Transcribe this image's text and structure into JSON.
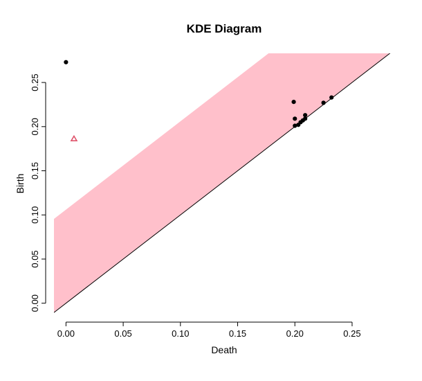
{
  "chart_data": {
    "type": "scatter",
    "title": "KDE Diagram",
    "xlabel": "Death",
    "ylabel": "Birth",
    "xlim": [
      -0.0105,
      0.2875
    ],
    "ylim": [
      -0.012,
      0.283
    ],
    "xticks": [
      0.0,
      0.05,
      0.1,
      0.15,
      0.2,
      0.25
    ],
    "xtick_labels": [
      "0.00",
      "0.05",
      "0.10",
      "0.15",
      "0.20",
      "0.25"
    ],
    "yticks": [
      0.0,
      0.05,
      0.1,
      0.15,
      0.2,
      0.25
    ],
    "ytick_labels": [
      "0.00",
      "0.05",
      "0.10",
      "0.15",
      "0.20",
      "0.25"
    ],
    "grid": false,
    "diagonal": true,
    "confidence_band": {
      "offset": 0.106,
      "color": "#ffc0cb"
    },
    "series": [
      {
        "marker": "dot",
        "color": "#000000",
        "points": [
          {
            "x": 0.0,
            "y": 0.273
          },
          {
            "x": 0.199,
            "y": 0.228
          },
          {
            "x": 0.232,
            "y": 0.233
          },
          {
            "x": 0.225,
            "y": 0.227
          },
          {
            "x": 0.2,
            "y": 0.209
          },
          {
            "x": 0.209,
            "y": 0.213
          },
          {
            "x": 0.2,
            "y": 0.201
          },
          {
            "x": 0.203,
            "y": 0.202
          },
          {
            "x": 0.205,
            "y": 0.205
          },
          {
            "x": 0.207,
            "y": 0.207
          },
          {
            "x": 0.209,
            "y": 0.209
          }
        ]
      },
      {
        "marker": "triangle",
        "color": "#df536b",
        "points": [
          {
            "x": 0.007,
            "y": 0.186
          }
        ]
      }
    ]
  }
}
